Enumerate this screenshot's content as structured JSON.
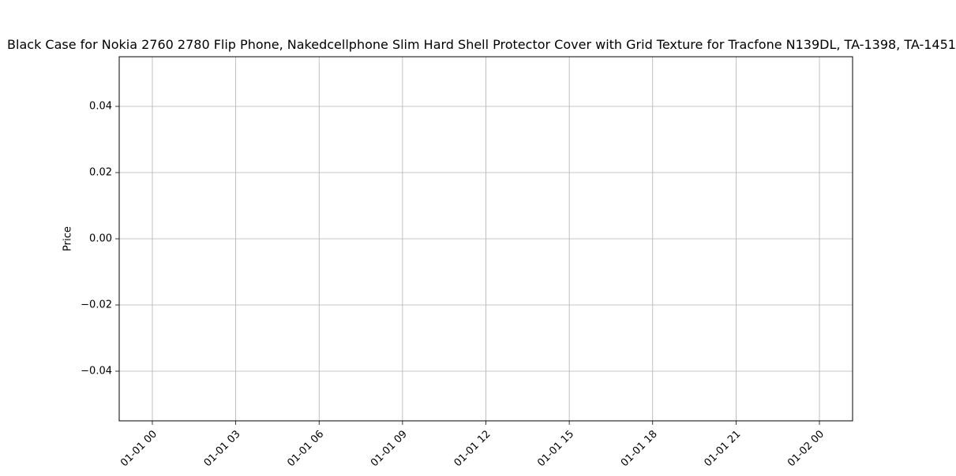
{
  "chart_data": {
    "type": "line",
    "title": "Black Case for Nokia 2760 2780 Flip Phone, Nakedcellphone Slim Hard Shell Protector Cover with Grid Texture for Tracfone N139DL, TA-1398, TA-1451",
    "xlabel": "",
    "ylabel": "Price",
    "x_ticks": [
      "01-01 00",
      "01-01 03",
      "01-01 06",
      "01-01 09",
      "01-01 12",
      "01-01 15",
      "01-01 18",
      "01-01 21",
      "01-02 00"
    ],
    "y_ticks": [
      "−0.04",
      "−0.02",
      "0.00",
      "0.02",
      "0.04"
    ],
    "y_tick_values": [
      -0.04,
      -0.02,
      0.0,
      0.02,
      0.04
    ],
    "ylim": [
      -0.055,
      0.055
    ],
    "series": [],
    "grid": true
  },
  "colors": {
    "grid": "#b0b0b0",
    "axis": "#000000"
  }
}
